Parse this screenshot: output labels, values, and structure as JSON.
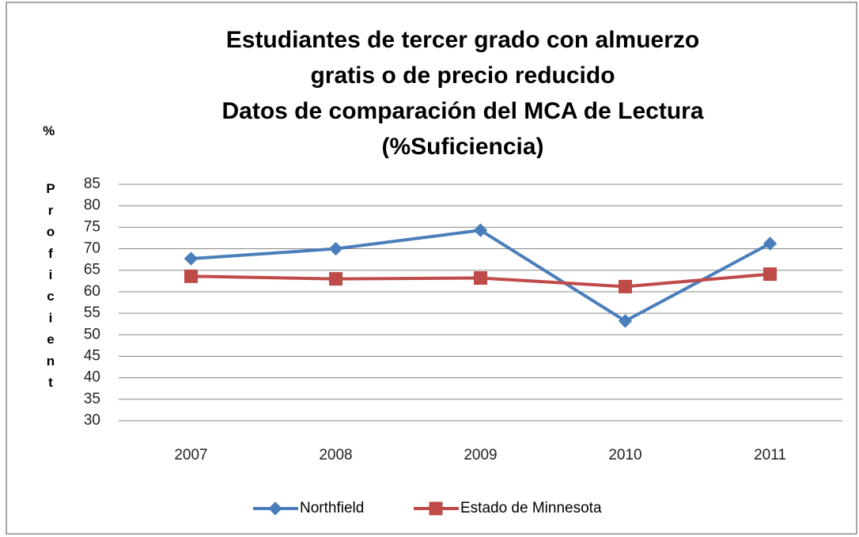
{
  "chart_data": {
    "type": "line",
    "title": "Estudiantes de tercer grado con almuerzo\ngratis o de precio reducido\nDatos de comparación del MCA de Lectura\n(%Suficiencia)",
    "y_label": "% Proficient",
    "categories": [
      "2007",
      "2008",
      "2009",
      "2010",
      "2011"
    ],
    "series": [
      {
        "name": "Northfield",
        "color": "#4a7ebb",
        "marker": "diamond",
        "values": [
          67.7,
          70,
          74.3,
          53.2,
          71.2
        ]
      },
      {
        "name": "Estado de Minnesota",
        "color": "#be4b48",
        "marker": "square",
        "values": [
          63.6,
          63,
          63.2,
          61.2,
          64.1
        ]
      }
    ],
    "ylim": [
      30,
      85
    ],
    "yticks": [
      30,
      35,
      40,
      45,
      50,
      55,
      60,
      65,
      70,
      75,
      80,
      85
    ],
    "grid": true,
    "legend": "bottom"
  }
}
